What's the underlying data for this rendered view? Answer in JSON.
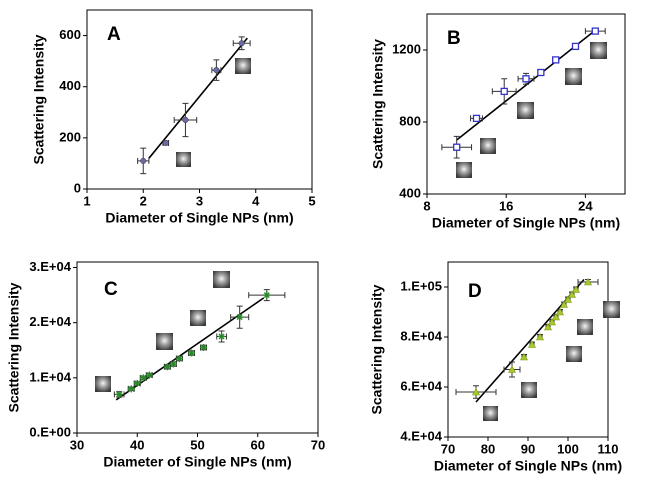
{
  "chart_data": [
    {
      "type": "scatter",
      "label": "A",
      "x_label": "Diameter of Single NPs (nm)",
      "y_label": "Scattering Intensity",
      "xlim": [
        1,
        5
      ],
      "ylim": [
        0,
        700
      ],
      "xticks": [
        1,
        2,
        3,
        4,
        5
      ],
      "yticks": [
        0,
        200,
        400,
        600
      ],
      "marker": "circle",
      "color": "#6a6aa8",
      "x": [
        2.0,
        2.4,
        2.75,
        3.3,
        3.75
      ],
      "values": [
        110,
        180,
        270,
        465,
        570
      ],
      "xerr": [
        0.1,
        0.05,
        0.2,
        0.08,
        0.15
      ],
      "yerr": [
        50,
        8,
        65,
        40,
        25
      ],
      "fit": {
        "x": [
          2.1,
          3.85
        ],
        "y": [
          120,
          590
        ]
      }
    },
    {
      "type": "scatter",
      "label": "B",
      "x_label": "Diameter of Single NPs (nm)",
      "y_label": "Scattering Intensity",
      "xlim": [
        8,
        28
      ],
      "ylim": [
        400,
        1400
      ],
      "xticks": [
        8,
        16,
        24
      ],
      "yticks": [
        400,
        800,
        1200
      ],
      "marker": "square",
      "color": "#3333cc",
      "x": [
        11,
        13,
        15.8,
        18,
        19.5,
        21,
        23,
        25
      ],
      "values": [
        660,
        820,
        970,
        1040,
        1075,
        1145,
        1220,
        1305
      ],
      "xerr": [
        1.5,
        0.6,
        1.2,
        0.8,
        0.3,
        0.3,
        0.3,
        1.0
      ],
      "yerr": [
        60,
        15,
        70,
        30,
        15,
        15,
        10,
        10
      ],
      "fit": {
        "x": [
          11,
          25
        ],
        "y": [
          700,
          1310
        ]
      }
    },
    {
      "type": "scatter",
      "label": "C",
      "x_label": "Diameter of Single NPs (nm)",
      "y_label": "Scattering Intensity",
      "xlim": [
        30,
        70
      ],
      "ylim": [
        0,
        31000
      ],
      "xticks": [
        30,
        40,
        50,
        60,
        70
      ],
      "yticks": [
        {
          "value": 0,
          "label": "0.E+00"
        },
        {
          "value": 10000,
          "label": "1.E+04"
        },
        {
          "value": 20000,
          "label": "2.E+04"
        },
        {
          "value": 30000,
          "label": "3.E+04"
        }
      ],
      "marker": "cross",
      "color": "#2a8a2a",
      "x": [
        37,
        39,
        40,
        41,
        42,
        45,
        46,
        47,
        49,
        51,
        54,
        57,
        61.5
      ],
      "values": [
        7000,
        8000,
        9000,
        10000,
        10500,
        12000,
        12500,
        13500,
        14500,
        15500,
        17500,
        21000,
        25000
      ],
      "xerr": [
        0.8,
        0.5,
        0.5,
        0.5,
        0.5,
        0.5,
        0.5,
        0.5,
        0.5,
        0.5,
        0.8,
        1.5,
        3
      ],
      "yerr": [
        500,
        300,
        300,
        300,
        300,
        400,
        400,
        400,
        400,
        400,
        1000,
        2000,
        1000
      ],
      "fit": {
        "x": [
          36.5,
          61
        ],
        "y": [
          6000,
          24500
        ]
      }
    },
    {
      "type": "scatter",
      "label": "D",
      "x_label": "Diameter of Single NPs (nm)",
      "y_label": "Scattering Intensity",
      "xlim": [
        70,
        110
      ],
      "ylim": [
        40000,
        110000
      ],
      "xticks": [
        70,
        80,
        90,
        100,
        110
      ],
      "yticks": [
        {
          "value": 40000,
          "label": "4.E+04"
        },
        {
          "value": 60000,
          "label": "6.E+04"
        },
        {
          "value": 80000,
          "label": "8.E+04"
        },
        {
          "value": 100000,
          "label": "1.E+05"
        }
      ],
      "marker": "triangle",
      "color": "#a8c830",
      "x": [
        77,
        86,
        89,
        91,
        93,
        95,
        96,
        97,
        98,
        99,
        100,
        101,
        102,
        105
      ],
      "values": [
        58000,
        67000,
        72000,
        77000,
        80000,
        84000,
        86000,
        88000,
        90000,
        93000,
        95000,
        97000,
        99000,
        102000
      ],
      "xerr": [
        5,
        2,
        0.5,
        0.5,
        0.5,
        0.5,
        0.5,
        0.5,
        0.5,
        0.5,
        0.5,
        0.5,
        0.5,
        2.5
      ],
      "yerr": [
        2500,
        3000,
        1000,
        1000,
        1000,
        1000,
        1000,
        1000,
        1000,
        1000,
        1000,
        1000,
        1000,
        1000
      ],
      "fit": {
        "x": [
          77,
          104
        ],
        "y": [
          54000,
          103000
        ]
      }
    }
  ]
}
